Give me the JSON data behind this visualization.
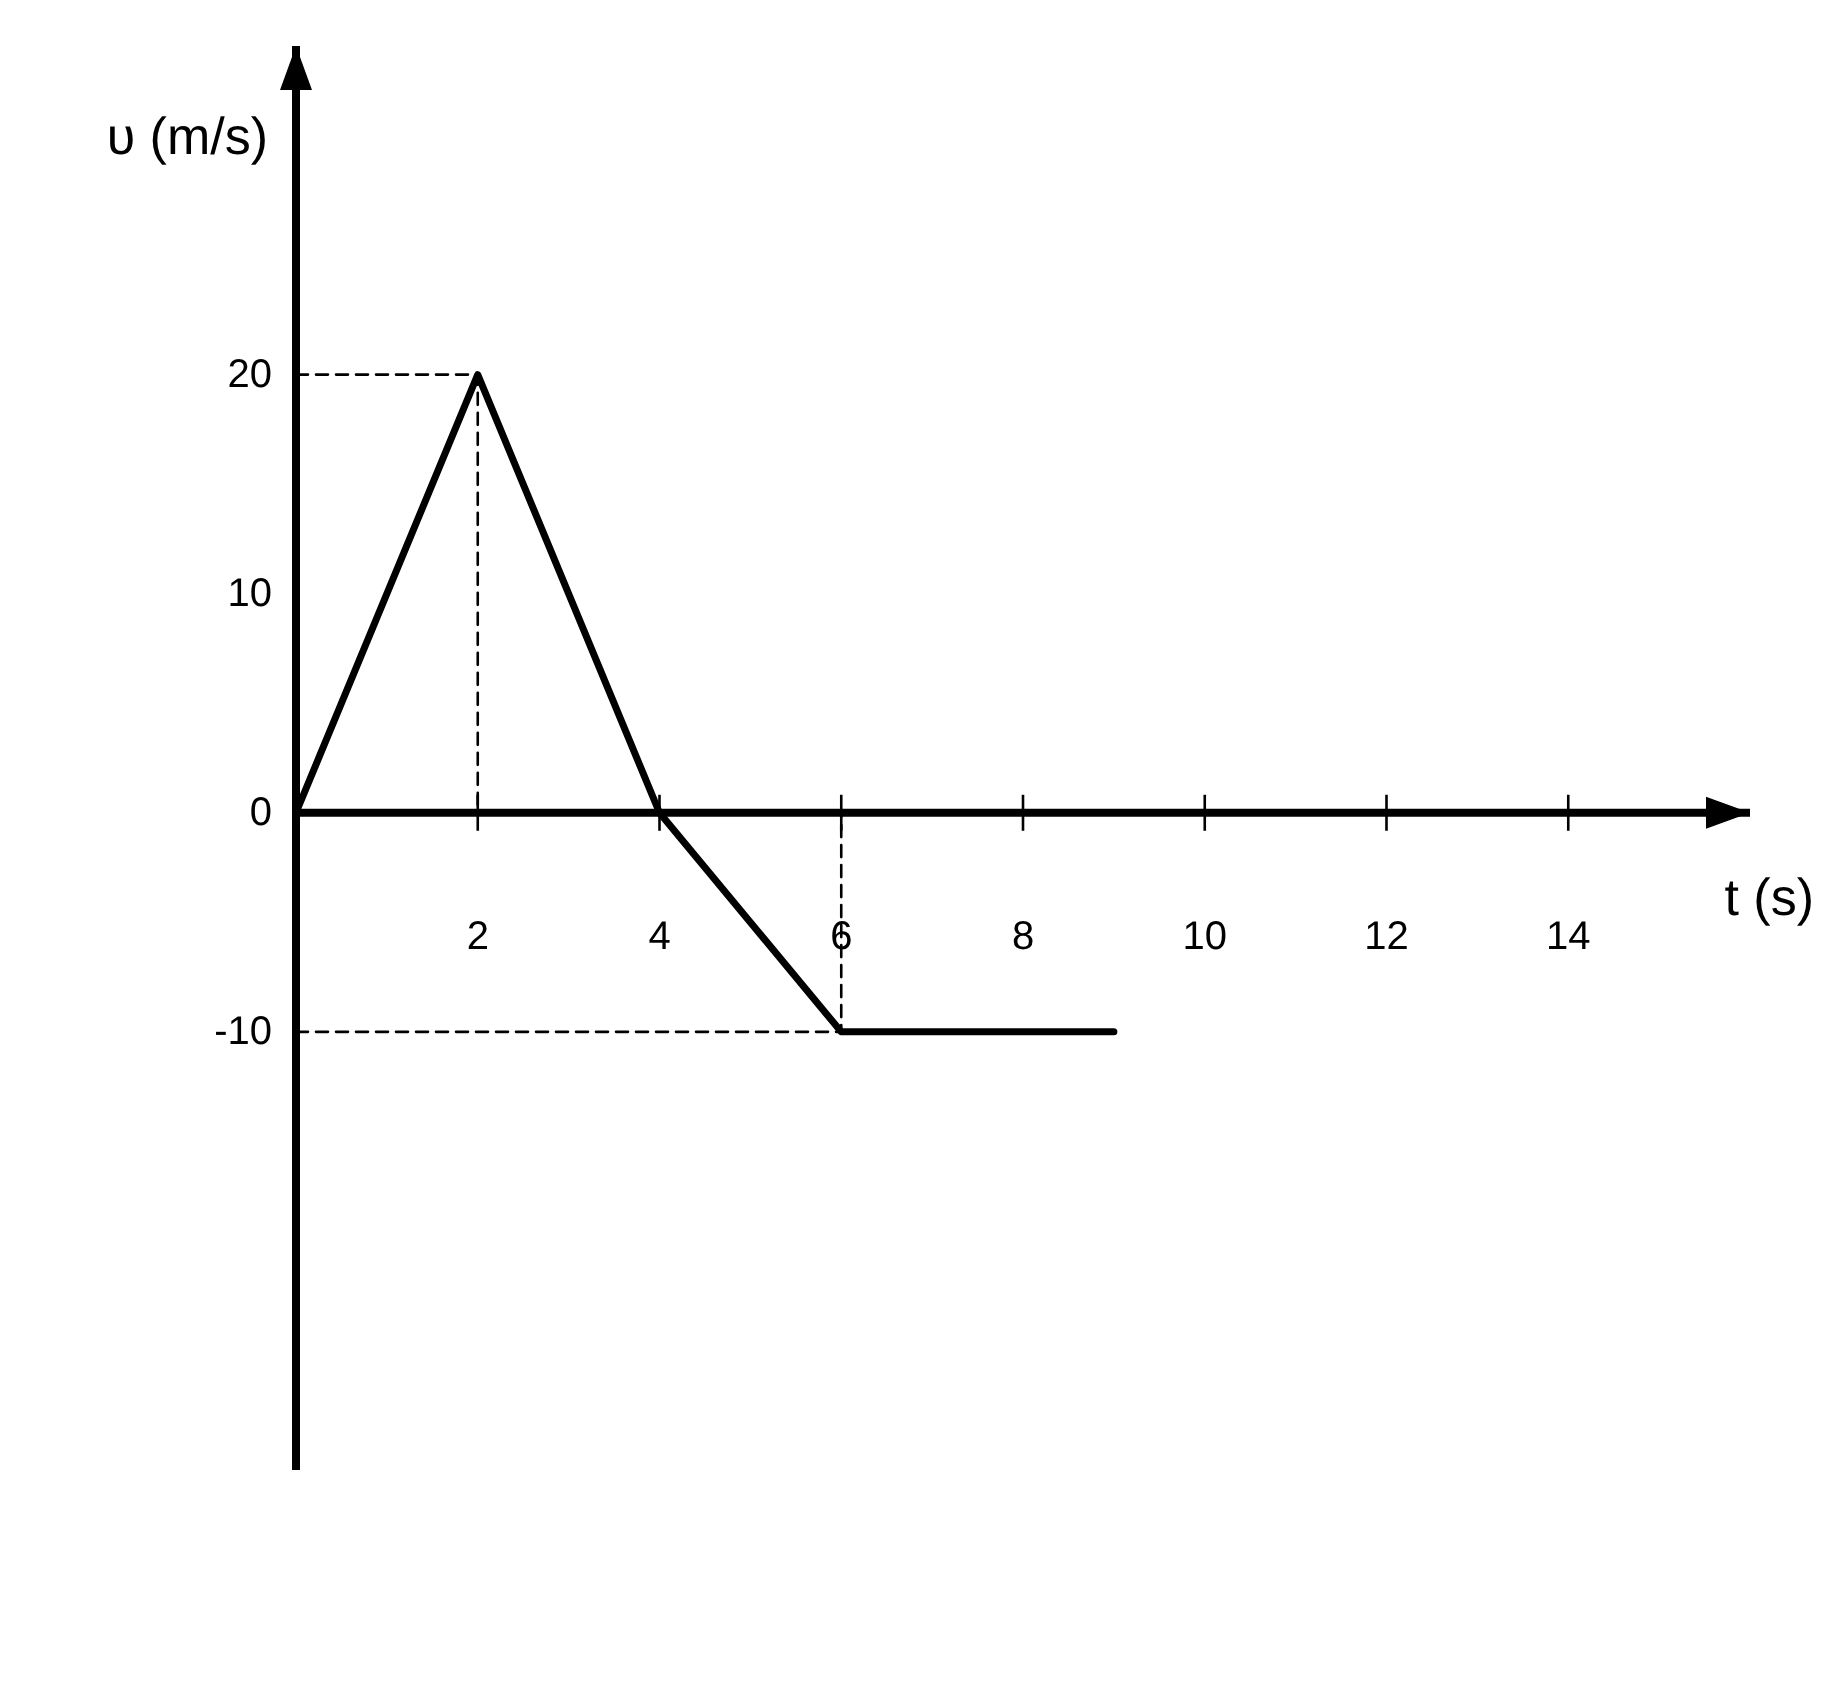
{
  "chart_data": {
    "type": "line",
    "xlabel": "t (s)",
    "ylabel": "υ (m/s)",
    "xlim": [
      0,
      16
    ],
    "ylim": [
      -30,
      35
    ],
    "xticks": [
      2,
      4,
      6,
      8,
      10,
      12,
      14
    ],
    "yticks": [
      -10,
      0,
      10,
      20
    ],
    "series": [
      {
        "color": "#000000",
        "x": [
          0,
          2,
          4,
          6,
          9
        ],
        "values": [
          0,
          20,
          0,
          -10,
          -10
        ]
      },
      {
        "type": "line",
        "line_style": "dashed",
        "color": "#000000",
        "x": [
          0,
          2,
          2
        ],
        "values": [
          20,
          20,
          0
        ]
      },
      {
        "type": "line",
        "line_style": "dashed",
        "color": "#000000",
        "x": [
          0,
          6,
          6
        ],
        "values": [
          -10,
          -10,
          0
        ]
      }
    ]
  }
}
